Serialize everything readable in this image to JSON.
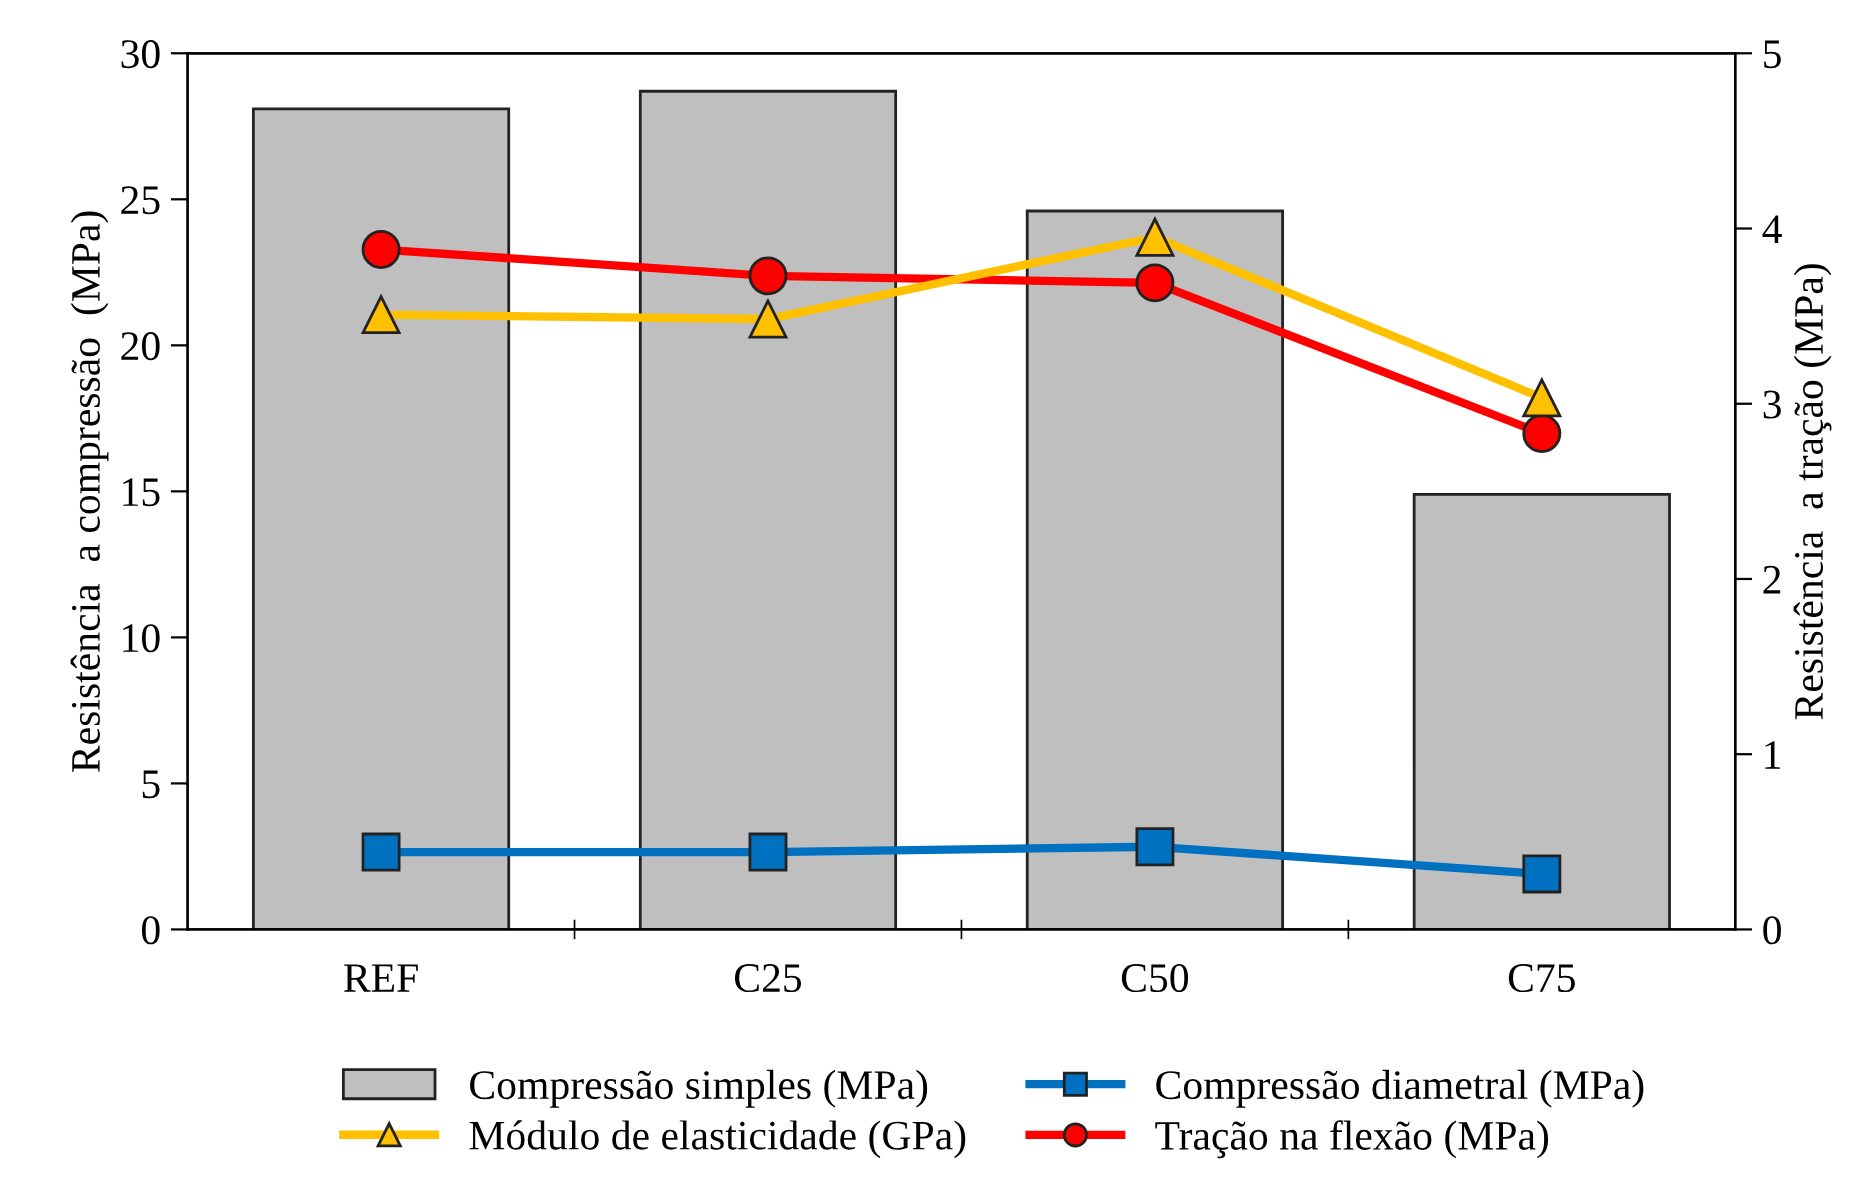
{
  "chart_data": {
    "type": "bar",
    "categories": [
      "REF",
      "C25",
      "C50",
      "C75"
    ],
    "ylabel": "Resistência  a compressão  (MPa)",
    "y2label": "Resistência  a tração (MPa)",
    "ylim": [
      0,
      30
    ],
    "yticks": [
      0,
      5,
      10,
      15,
      20,
      25,
      30
    ],
    "y2lim": [
      0,
      5
    ],
    "y2ticks": [
      0,
      1,
      2,
      3,
      4,
      5
    ],
    "grid": false,
    "legend": "bottom",
    "series": [
      {
        "name": "Compressão simples (MPa)",
        "color": "#bfbfbf",
        "values": [
          28.1,
          28.7,
          24.6,
          14.9
        ]
      },
      {
        "name": "Compressão diametral (MPa)",
        "type": "line",
        "marker": "square",
        "color": "#0070c0",
        "values": [
          2.65,
          2.65,
          2.83,
          1.9
        ]
      },
      {
        "name": "Módulo de elasticidade (GPa)",
        "type": "line",
        "marker": "triangle",
        "color": "#ffc000",
        "values": [
          21.05,
          20.9,
          23.7,
          18.2
        ]
      },
      {
        "name": "Tração na flexão (MPa)",
        "type": "line",
        "marker": "circle",
        "color": "#ff0000",
        "axis": "y2",
        "values": [
          3.88,
          3.73,
          3.69,
          2.83
        ]
      }
    ]
  }
}
